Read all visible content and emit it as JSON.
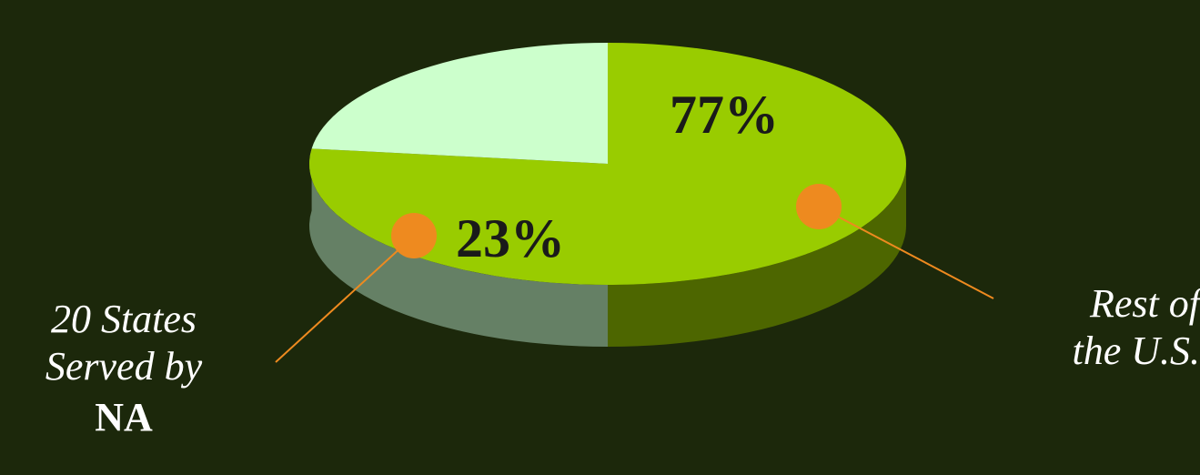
{
  "chart_data": {
    "type": "pie",
    "slices": [
      {
        "label": "20 States Served by NA",
        "value": 23,
        "display": "23%",
        "color": "#ccffcc",
        "side_color": "#658065"
      },
      {
        "label": "Rest of the U.S.",
        "value": 77,
        "display": "77%",
        "color": "#99cc00",
        "side_color": "#4d6600"
      }
    ],
    "annotations": {
      "left": {
        "line1": "20 States",
        "line2": "Served by",
        "line3": "NA"
      },
      "right": {
        "line1": "Rest of",
        "line2": "the U.S."
      }
    },
    "marker_color": "#ee8a1f",
    "background": "#1c280b"
  }
}
